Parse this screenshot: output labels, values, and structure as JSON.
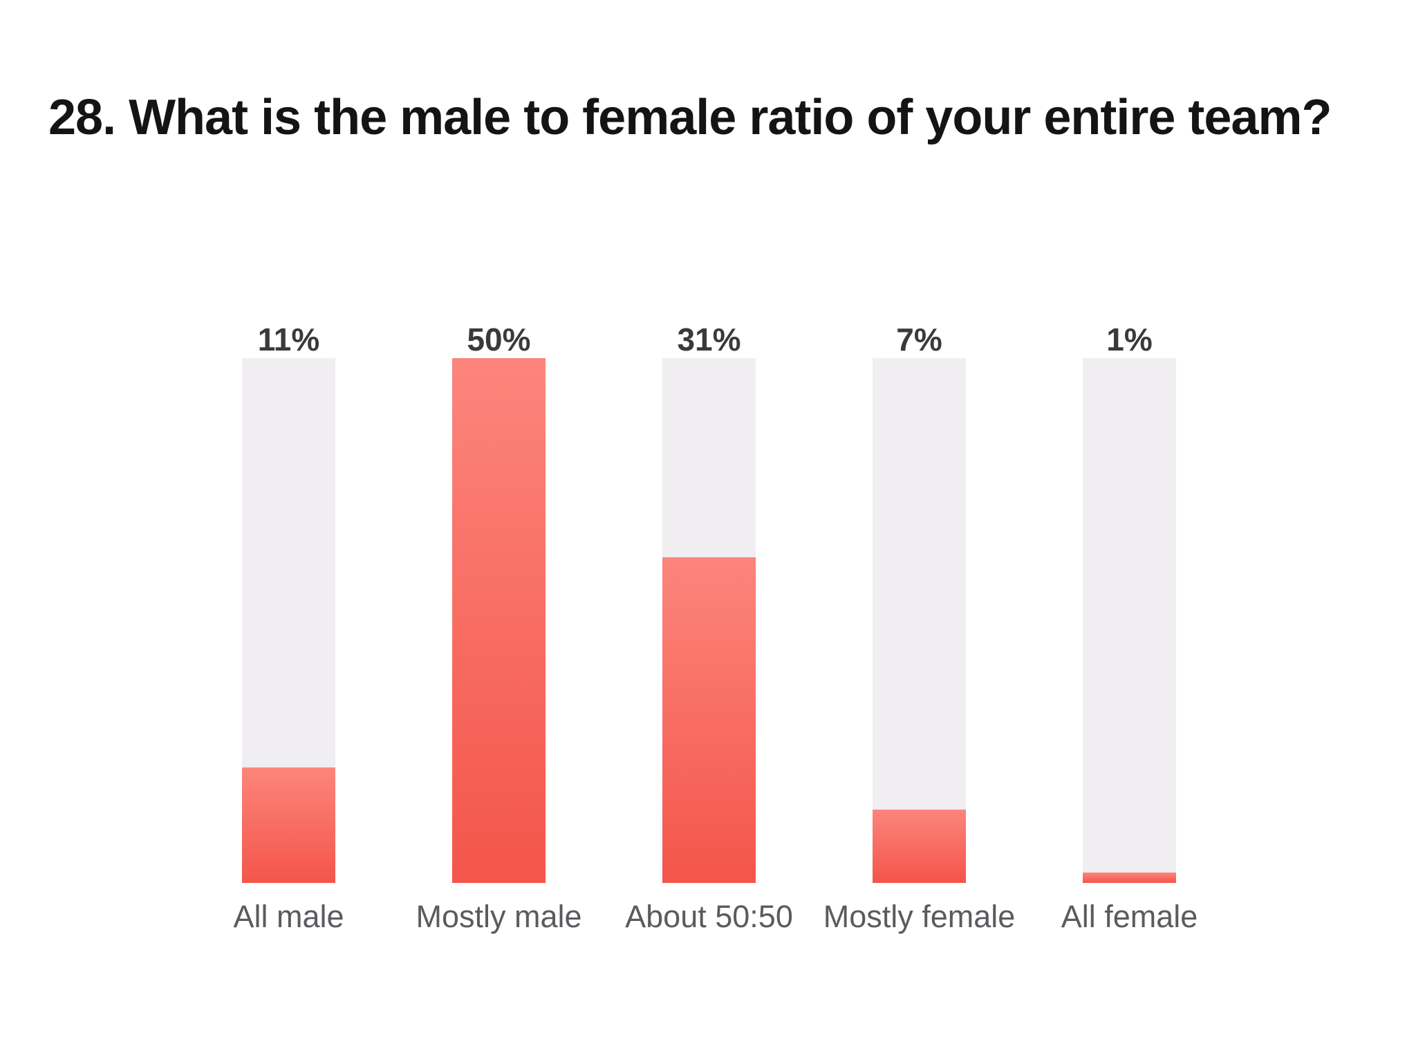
{
  "page": {
    "title": "28. What is the male to female ratio of your entire team?"
  },
  "chart_data": {
    "type": "bar",
    "title": "28. What is the male to female ratio of your entire team?",
    "categories": [
      "All male",
      "Mostly male",
      "About 50:50",
      "Mostly female",
      "All female"
    ],
    "values": [
      11,
      50,
      31,
      7,
      1
    ],
    "value_labels": [
      "11%",
      "50%",
      "31%",
      "7%",
      "1%"
    ],
    "ylim": [
      0,
      50
    ],
    "scale_max": 50,
    "grid": false,
    "legend": false,
    "orientation": "vertical",
    "colors": {
      "track": "#f0eef1",
      "fill_top": "#fc857c",
      "fill_bottom": "#f4554a",
      "value_label": "#3a3a3c",
      "category_label": "#5b5b5f",
      "title": "#141415",
      "background": "#ffffff"
    }
  }
}
